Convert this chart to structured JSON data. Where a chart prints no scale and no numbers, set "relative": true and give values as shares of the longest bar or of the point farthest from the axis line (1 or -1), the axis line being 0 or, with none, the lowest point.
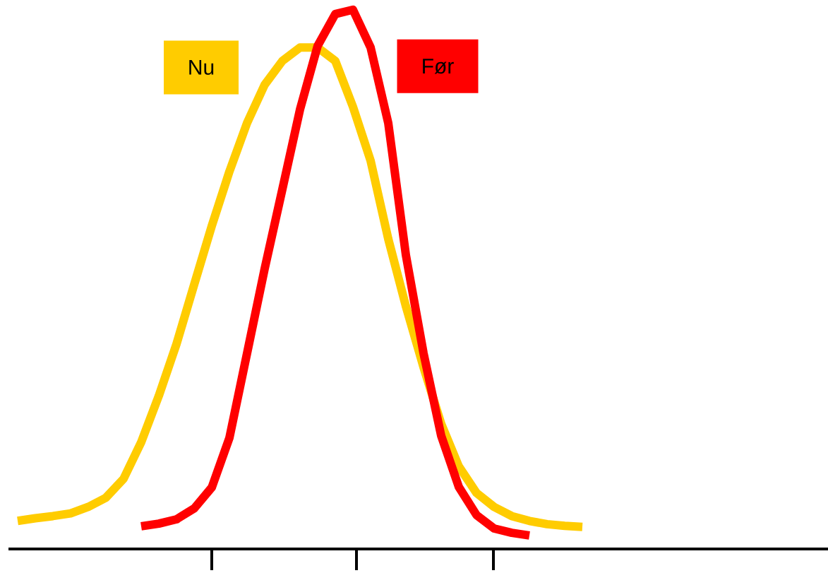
{
  "chart_data": {
    "type": "line",
    "relative": true,
    "categories": [
      null,
      null,
      null,
      null,
      null,
      null,
      null,
      null,
      null,
      null,
      null,
      null,
      null,
      null,
      null,
      null,
      null,
      null,
      null,
      null,
      null,
      null,
      null,
      null,
      null,
      null,
      null,
      null,
      null,
      null,
      null,
      null,
      null
    ],
    "series": [
      {
        "name": "Nu",
        "color": "#ffcc00",
        "values": [
          0.052,
          0.057,
          0.061,
          0.066,
          0.078,
          0.095,
          0.13,
          0.198,
          0.284,
          0.38,
          0.49,
          0.599,
          0.7,
          0.79,
          0.861,
          0.905,
          0.93,
          0.93,
          0.905,
          0.82,
          0.72,
          0.575,
          0.45,
          0.337,
          0.232,
          0.153,
          0.104,
          0.078,
          0.061,
          0.052,
          0.046,
          0.043,
          0.041
        ]
      },
      {
        "name": "Før",
        "color": "#ff0000",
        "values": [
          null,
          null,
          null,
          null,
          null,
          null,
          null,
          0.042,
          0.047,
          0.055,
          0.075,
          0.114,
          0.206,
          0.363,
          0.52,
          0.667,
          0.815,
          0.933,
          0.992,
          1.0,
          0.93,
          0.79,
          0.545,
          0.363,
          0.21,
          0.115,
          0.063,
          0.038,
          0.03,
          0.025,
          null,
          null,
          null
        ]
      }
    ]
  }
}
